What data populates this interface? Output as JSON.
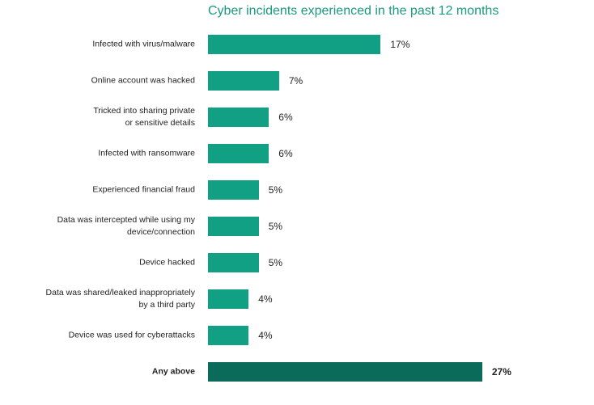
{
  "chart_data": {
    "type": "bar",
    "orientation": "horizontal",
    "title": "Cyber incidents experienced in the past 12 months",
    "categories": [
      "Infected with virus/malware",
      "Online account was hacked",
      "Tricked into sharing private\nor sensitive details",
      "Infected with ransomware",
      "Experienced financial fraud",
      "Data was intercepted while using my\ndevice/connection",
      "Device hacked",
      "Data was shared/leaked inappropriately\nby a third party",
      "Device was used for cyberattacks",
      "Any above"
    ],
    "values": [
      17,
      7,
      6,
      6,
      5,
      5,
      5,
      4,
      4,
      27
    ],
    "value_labels": [
      "17%",
      "7%",
      "6%",
      "6%",
      "5%",
      "5%",
      "5%",
      "4%",
      "4%",
      "27%"
    ],
    "colors": [
      "#12a085",
      "#12a085",
      "#12a085",
      "#12a085",
      "#12a085",
      "#12a085",
      "#12a085",
      "#12a085",
      "#12a085",
      "#0b6b5b"
    ],
    "bold": [
      false,
      false,
      false,
      false,
      false,
      false,
      false,
      false,
      false,
      true
    ]
  }
}
